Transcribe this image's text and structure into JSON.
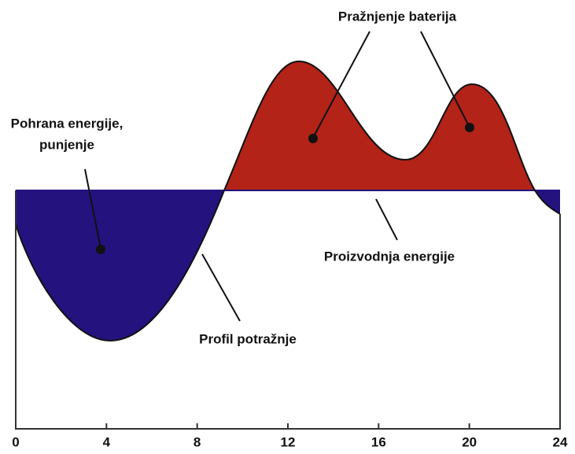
{
  "labels": {
    "discharge": "Pražnjenje baterija",
    "storage_line1": "Pohrana energije,",
    "storage_line2": "punjenje",
    "production": "Proizvodnja energije",
    "demand": "Profil potražnje"
  },
  "axis": {
    "xlim": [
      0,
      24
    ],
    "xticks": [
      0,
      4,
      8,
      12,
      16,
      20,
      24
    ]
  }
}
